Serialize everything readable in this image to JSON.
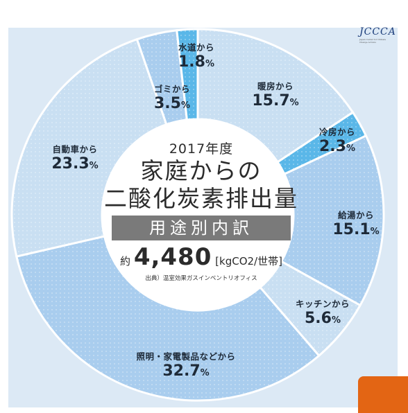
{
  "colors": {
    "panel_bg": "#dce9f5",
    "segment_pale": "#c9dff2",
    "segment_light": "#a9cdee",
    "segment_accent": "#5ab7e8",
    "center_bg": "#ffffff",
    "breakdown_bg": "#7a7a7a",
    "accent_block": "#e36514"
  },
  "logo": {
    "text": "JCCCA",
    "sub": "Japan Center for Climate Change Actions",
    "icon": "jccca-logo"
  },
  "center": {
    "year": "2017年度",
    "title_line1": "家庭からの",
    "title_line2": "二酸化炭素排出量",
    "breakdown": "用途別内訳",
    "total_prefix": "約",
    "total_value": "4,480",
    "total_unit": "[kgCO2/世帯]",
    "source": "出典）温室効果ガスインベントリオフィス"
  },
  "chart_data": {
    "type": "pie",
    "style": "donut",
    "start_angle_deg": 0,
    "direction": "clockwise",
    "unit": "%",
    "slices": [
      {
        "name": "暖房から",
        "value": 15.7,
        "pct_label": "15.7",
        "color": "#c9dff2"
      },
      {
        "name": "冷房から",
        "value": 2.3,
        "pct_label": "2.3",
        "color": "#5ab7e8"
      },
      {
        "name": "給湯から",
        "value": 15.1,
        "pct_label": "15.1",
        "color": "#a9cdee"
      },
      {
        "name": "キッチンから",
        "value": 5.6,
        "pct_label": "5.6",
        "color": "#c9dff2"
      },
      {
        "name": "照明・家電製品などから",
        "value": 32.7,
        "pct_label": "32.7",
        "color": "#a9cdee"
      },
      {
        "name": "自動車から",
        "value": 23.3,
        "pct_label": "23.3",
        "color": "#c9dff2"
      },
      {
        "name": "ゴミから",
        "value": 3.5,
        "pct_label": "3.5",
        "color": "#a9cdee"
      },
      {
        "name": "水道から",
        "value": 1.8,
        "pct_label": "1.8",
        "color": "#5ab7e8"
      }
    ]
  }
}
